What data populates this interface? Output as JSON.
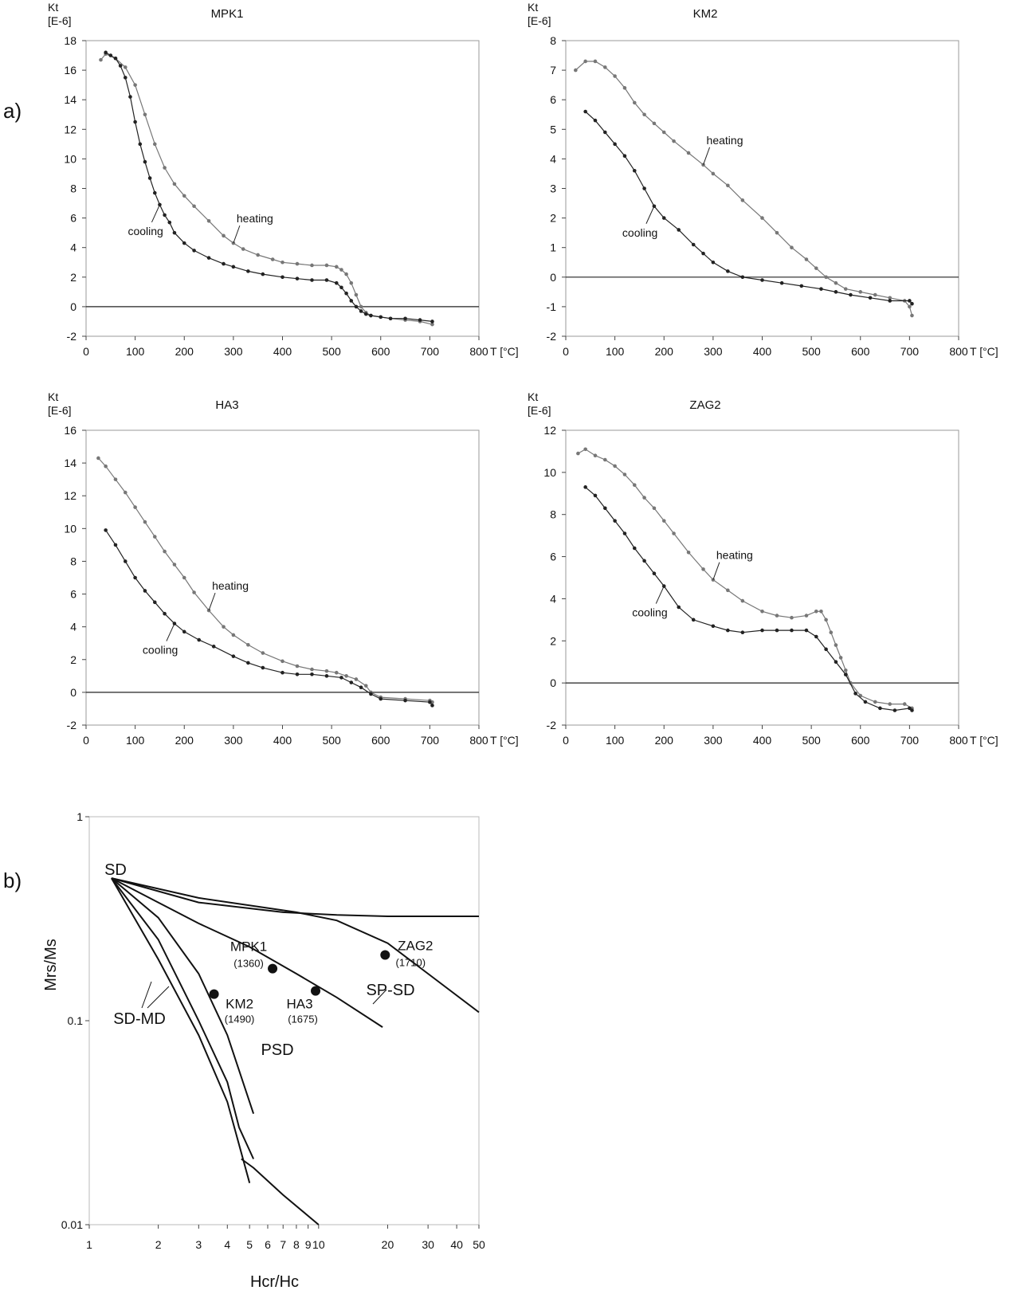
{
  "panel_labels": {
    "a": "a)",
    "b": "b)"
  },
  "chart_data": [
    {
      "type": "line",
      "title": "MPK1",
      "ylabel_top": "Kt",
      "ylabel_unit": "[E-6]",
      "xlabel": "T [°C]",
      "xlim": [
        0,
        800
      ],
      "ylim": [
        -2,
        18
      ],
      "xticks": [
        "0",
        "100",
        "200",
        "300",
        "400",
        "500",
        "600",
        "700",
        "800"
      ],
      "yticks": [
        "-2",
        "0",
        "2",
        "4",
        "6",
        "8",
        "10",
        "12",
        "14",
        "16",
        "18"
      ],
      "annotations": {
        "heating": "heating",
        "cooling": "cooling"
      },
      "series": [
        {
          "name": "heating",
          "color": "#777777",
          "x": [
            30,
            40,
            60,
            80,
            100,
            120,
            140,
            160,
            180,
            200,
            220,
            250,
            280,
            300,
            320,
            350,
            380,
            400,
            430,
            460,
            490,
            510,
            520,
            530,
            540,
            550,
            560,
            570,
            580,
            600,
            620,
            650,
            680,
            705
          ],
          "y": [
            16.7,
            17.1,
            16.8,
            16.2,
            15.0,
            13.0,
            11.0,
            9.4,
            8.3,
            7.5,
            6.8,
            5.8,
            4.8,
            4.3,
            3.9,
            3.5,
            3.2,
            3.0,
            2.9,
            2.8,
            2.8,
            2.7,
            2.5,
            2.2,
            1.6,
            0.8,
            0.0,
            -0.4,
            -0.6,
            -0.7,
            -0.8,
            -0.9,
            -1.0,
            -1.2
          ]
        },
        {
          "name": "cooling",
          "color": "#222222",
          "x": [
            40,
            50,
            60,
            70,
            80,
            90,
            100,
            110,
            120,
            130,
            140,
            150,
            160,
            170,
            180,
            200,
            220,
            250,
            280,
            300,
            330,
            360,
            400,
            430,
            460,
            490,
            510,
            520,
            530,
            540,
            550,
            560,
            570,
            580,
            600,
            620,
            650,
            680,
            705
          ],
          "y": [
            17.2,
            17.0,
            16.8,
            16.3,
            15.5,
            14.2,
            12.5,
            11.0,
            9.8,
            8.7,
            7.7,
            6.9,
            6.2,
            5.7,
            5.0,
            4.3,
            3.8,
            3.3,
            2.9,
            2.7,
            2.4,
            2.2,
            2.0,
            1.9,
            1.8,
            1.8,
            1.6,
            1.3,
            0.9,
            0.4,
            0.0,
            -0.3,
            -0.5,
            -0.6,
            -0.7,
            -0.8,
            -0.8,
            -0.9,
            -1.0
          ]
        }
      ]
    },
    {
      "type": "line",
      "title": "KM2",
      "ylabel_top": "Kt",
      "ylabel_unit": "[E-6]",
      "xlabel": "T [°C]",
      "xlim": [
        0,
        800
      ],
      "ylim": [
        -2,
        8
      ],
      "xticks": [
        "0",
        "100",
        "200",
        "300",
        "400",
        "500",
        "600",
        "700",
        "800"
      ],
      "yticks": [
        "-2",
        "-1",
        "0",
        "1",
        "2",
        "3",
        "4",
        "5",
        "6",
        "7",
        "8"
      ],
      "annotations": {
        "heating": "heating",
        "cooling": "cooling"
      },
      "series": [
        {
          "name": "heating",
          "color": "#777777",
          "x": [
            20,
            40,
            60,
            80,
            100,
            120,
            140,
            160,
            180,
            200,
            220,
            250,
            280,
            300,
            330,
            360,
            400,
            430,
            460,
            490,
            510,
            530,
            550,
            570,
            600,
            630,
            660,
            690,
            700,
            705
          ],
          "y": [
            7.0,
            7.3,
            7.3,
            7.1,
            6.8,
            6.4,
            5.9,
            5.5,
            5.2,
            4.9,
            4.6,
            4.2,
            3.8,
            3.5,
            3.1,
            2.6,
            2.0,
            1.5,
            1.0,
            0.6,
            0.3,
            0.0,
            -0.2,
            -0.4,
            -0.5,
            -0.6,
            -0.7,
            -0.8,
            -1.0,
            -1.3
          ]
        },
        {
          "name": "cooling",
          "color": "#222222",
          "x": [
            40,
            60,
            80,
            100,
            120,
            140,
            160,
            180,
            200,
            230,
            260,
            280,
            300,
            330,
            360,
            400,
            440,
            480,
            520,
            550,
            580,
            620,
            660,
            700,
            705
          ],
          "y": [
            5.6,
            5.3,
            4.9,
            4.5,
            4.1,
            3.6,
            3.0,
            2.4,
            2.0,
            1.6,
            1.1,
            0.8,
            0.5,
            0.2,
            0.0,
            -0.1,
            -0.2,
            -0.3,
            -0.4,
            -0.5,
            -0.6,
            -0.7,
            -0.8,
            -0.8,
            -0.9
          ]
        }
      ]
    },
    {
      "type": "line",
      "title": "HA3",
      "ylabel_top": "Kt",
      "ylabel_unit": "[E-6]",
      "xlabel": "T [°C]",
      "xlim": [
        0,
        800
      ],
      "ylim": [
        -2,
        16
      ],
      "xticks": [
        "0",
        "100",
        "200",
        "300",
        "400",
        "500",
        "600",
        "700",
        "800"
      ],
      "yticks": [
        "-2",
        "0",
        "2",
        "4",
        "6",
        "8",
        "10",
        "12",
        "14",
        "16"
      ],
      "annotations": {
        "heating": "heating",
        "cooling": "cooling"
      },
      "series": [
        {
          "name": "heating",
          "color": "#777777",
          "x": [
            25,
            40,
            60,
            80,
            100,
            120,
            140,
            160,
            180,
            200,
            220,
            250,
            280,
            300,
            330,
            360,
            400,
            430,
            460,
            490,
            510,
            530,
            550,
            570,
            580,
            600,
            650,
            700,
            705
          ],
          "y": [
            14.3,
            13.8,
            13.0,
            12.2,
            11.3,
            10.4,
            9.5,
            8.6,
            7.8,
            7.0,
            6.1,
            5.0,
            4.0,
            3.5,
            2.9,
            2.4,
            1.9,
            1.6,
            1.4,
            1.3,
            1.2,
            1.0,
            0.8,
            0.4,
            0.0,
            -0.3,
            -0.4,
            -0.5,
            -0.6
          ]
        },
        {
          "name": "cooling",
          "color": "#222222",
          "x": [
            40,
            60,
            80,
            100,
            120,
            140,
            160,
            180,
            200,
            230,
            260,
            300,
            330,
            360,
            400,
            430,
            460,
            490,
            520,
            540,
            560,
            580,
            600,
            650,
            700,
            705
          ],
          "y": [
            9.9,
            9.0,
            8.0,
            7.0,
            6.2,
            5.5,
            4.8,
            4.2,
            3.7,
            3.2,
            2.8,
            2.2,
            1.8,
            1.5,
            1.2,
            1.1,
            1.1,
            1.0,
            0.9,
            0.6,
            0.3,
            -0.1,
            -0.4,
            -0.5,
            -0.6,
            -0.8
          ]
        }
      ]
    },
    {
      "type": "line",
      "title": "ZAG2",
      "ylabel_top": "Kt",
      "ylabel_unit": "[E-6]",
      "xlabel": "T [°C]",
      "xlim": [
        0,
        800
      ],
      "ylim": [
        -2,
        12
      ],
      "xticks": [
        "0",
        "100",
        "200",
        "300",
        "400",
        "500",
        "600",
        "700",
        "800"
      ],
      "yticks": [
        "-2",
        "0",
        "2",
        "4",
        "6",
        "8",
        "10",
        "12"
      ],
      "annotations": {
        "heating": "heating",
        "cooling": "cooling"
      },
      "series": [
        {
          "name": "heating",
          "color": "#777777",
          "x": [
            25,
            40,
            60,
            80,
            100,
            120,
            140,
            160,
            180,
            200,
            220,
            250,
            280,
            300,
            330,
            360,
            400,
            430,
            460,
            490,
            510,
            520,
            530,
            540,
            550,
            560,
            570,
            580,
            600,
            630,
            660,
            690,
            705
          ],
          "y": [
            10.9,
            11.1,
            10.8,
            10.6,
            10.3,
            9.9,
            9.4,
            8.8,
            8.3,
            7.7,
            7.1,
            6.2,
            5.4,
            4.9,
            4.4,
            3.9,
            3.4,
            3.2,
            3.1,
            3.2,
            3.4,
            3.4,
            3.0,
            2.4,
            1.8,
            1.2,
            0.6,
            0.0,
            -0.6,
            -0.9,
            -1.0,
            -1.0,
            -1.2
          ]
        },
        {
          "name": "cooling",
          "color": "#222222",
          "x": [
            40,
            60,
            80,
            100,
            120,
            140,
            160,
            180,
            200,
            230,
            260,
            300,
            330,
            360,
            400,
            430,
            460,
            490,
            510,
            530,
            550,
            570,
            590,
            610,
            640,
            670,
            700,
            705
          ],
          "y": [
            9.3,
            8.9,
            8.3,
            7.7,
            7.1,
            6.4,
            5.8,
            5.2,
            4.6,
            3.6,
            3.0,
            2.7,
            2.5,
            2.4,
            2.5,
            2.5,
            2.5,
            2.5,
            2.2,
            1.6,
            1.0,
            0.4,
            -0.5,
            -0.9,
            -1.2,
            -1.3,
            -1.2,
            -1.3
          ]
        }
      ]
    },
    {
      "type": "scatter",
      "title": "",
      "xlabel": "Hcr/Hc",
      "ylabel": "Mrs/Ms",
      "xscale": "log",
      "yscale": "log",
      "xlim": [
        1,
        50
      ],
      "ylim": [
        0.01,
        1
      ],
      "xticks": [
        1,
        2,
        3,
        4,
        5,
        6,
        7,
        8,
        9,
        10,
        20,
        30,
        40,
        50
      ],
      "xtick_labels": [
        "1",
        "2",
        "3",
        "4",
        "5",
        "6",
        "7",
        "8",
        "9",
        "10",
        "20",
        "30",
        "40",
        "50"
      ],
      "yticks": [
        0.01,
        0.1,
        1
      ],
      "ytick_labels": [
        "0.01",
        "0.1",
        "1"
      ],
      "region_labels": {
        "sd": "SD",
        "sd_md": "SD-MD",
        "psd": "PSD",
        "sp_sd": "SP-SD"
      },
      "points": [
        {
          "name": "MPK1",
          "value_label": "(1360)",
          "x": 6.3,
          "y": 0.18
        },
        {
          "name": "KM2",
          "value_label": "(1490)",
          "x": 3.5,
          "y": 0.135
        },
        {
          "name": "HA3",
          "value_label": "(1675)",
          "x": 9.7,
          "y": 0.14
        },
        {
          "name": "ZAG2",
          "value_label": "(1710)",
          "x": 19.5,
          "y": 0.21
        }
      ],
      "curves": [
        {
          "x": [
            1.25,
            2,
            3,
            4,
            5
          ],
          "y": [
            0.5,
            0.2,
            0.085,
            0.04,
            0.016
          ]
        },
        {
          "x": [
            1.25,
            2,
            3,
            4,
            4.5,
            5.2
          ],
          "y": [
            0.5,
            0.25,
            0.1,
            0.05,
            0.03,
            0.021
          ]
        },
        {
          "x": [
            1.25,
            2,
            3,
            4,
            5.2
          ],
          "y": [
            0.5,
            0.32,
            0.17,
            0.085,
            0.035
          ]
        },
        {
          "x": [
            1.25,
            2,
            3,
            5,
            8,
            12,
            19
          ],
          "y": [
            0.5,
            0.38,
            0.3,
            0.23,
            0.17,
            0.13,
            0.093
          ]
        },
        {
          "x": [
            1.25,
            3,
            8,
            12,
            20,
            30,
            50
          ],
          "y": [
            0.5,
            0.4,
            0.34,
            0.31,
            0.24,
            0.17,
            0.11
          ]
        },
        {
          "x": [
            1.25,
            3,
            7,
            12,
            20,
            50
          ],
          "y": [
            0.5,
            0.38,
            0.34,
            0.33,
            0.325,
            0.325
          ]
        },
        {
          "x": [
            4.6,
            5.2,
            7,
            10
          ],
          "y": [
            0.021,
            0.019,
            0.014,
            0.01
          ]
        }
      ]
    }
  ]
}
